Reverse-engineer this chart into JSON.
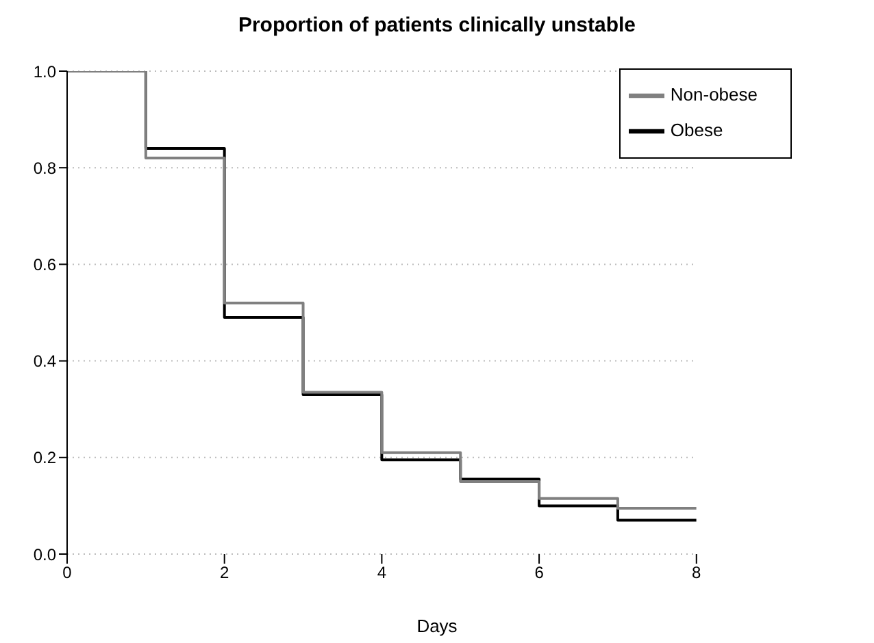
{
  "chart_data": {
    "type": "step",
    "title": "Proportion of patients clinically unstable",
    "xlabel": "Days",
    "x": [
      0,
      1,
      2,
      3,
      4,
      5,
      6,
      7,
      8
    ],
    "series": [
      {
        "name": "Obese",
        "color": "#000000",
        "values": [
          1.0,
          0.84,
          0.49,
          0.33,
          0.195,
          0.155,
          0.1,
          0.07,
          0.07
        ]
      },
      {
        "name": "Non-obese",
        "color": "#808080",
        "values": [
          1.0,
          0.82,
          0.52,
          0.335,
          0.21,
          0.15,
          0.115,
          0.095,
          0.095
        ]
      }
    ],
    "xlim": [
      0,
      8
    ],
    "xticks": [
      0,
      2,
      4,
      6,
      8
    ],
    "ylim": [
      0,
      1
    ],
    "yticks": [
      {
        "value": 0,
        "label": "0.0"
      },
      {
        "value": 0.2,
        "label": "0.2"
      },
      {
        "value": 0.4,
        "label": "0.4"
      },
      {
        "value": 0.6,
        "label": "0.6"
      },
      {
        "value": 0.8,
        "label": "0.8"
      },
      {
        "value": 1,
        "label": "1.0"
      }
    ],
    "grid": "y",
    "legend": "top right",
    "marker": "none",
    "line_style": "solid"
  }
}
